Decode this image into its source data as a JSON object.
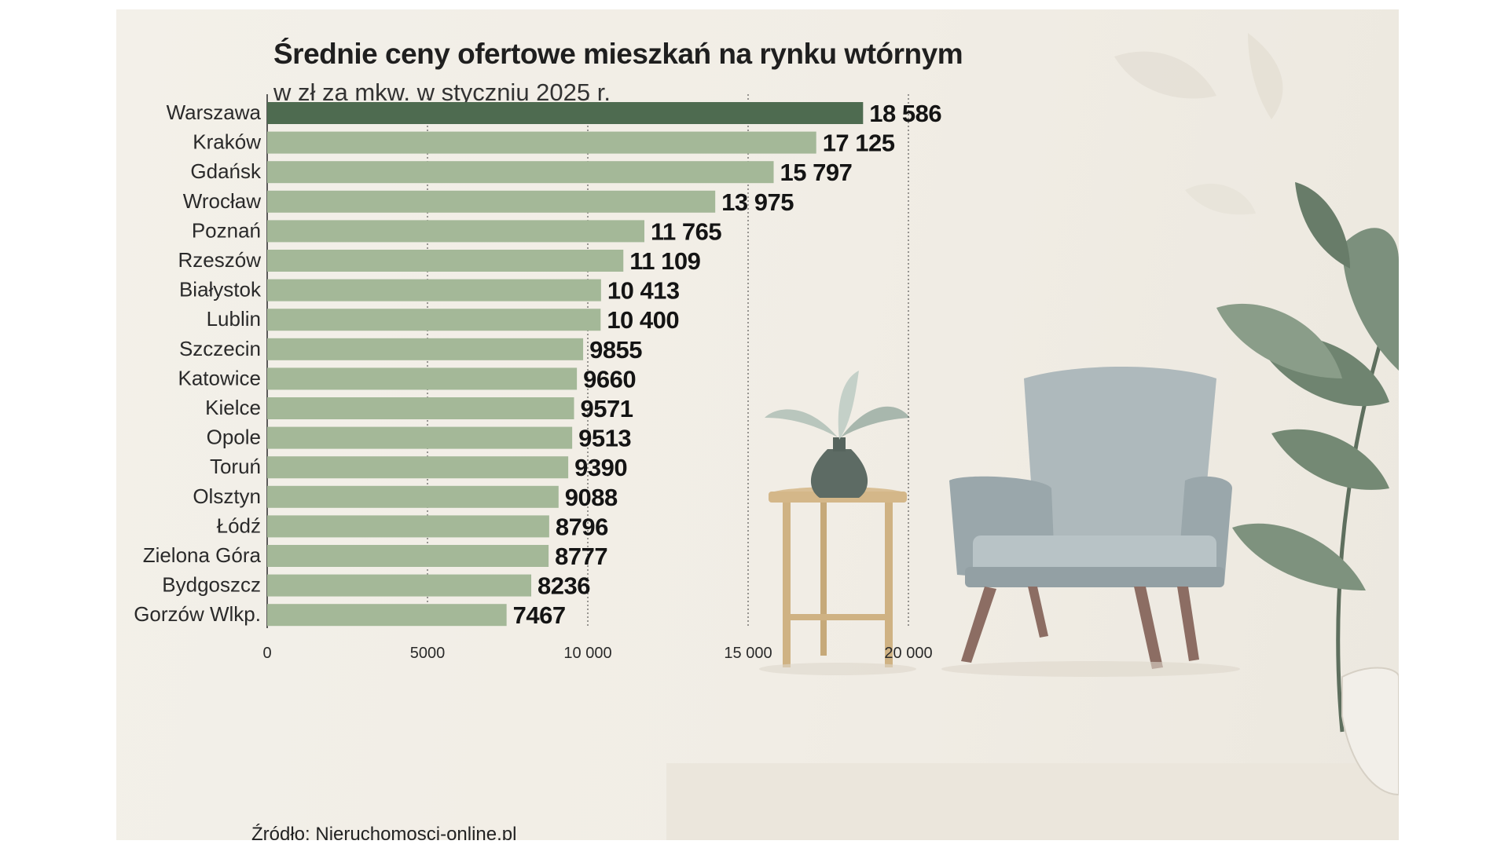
{
  "title": "Średnie ceny ofertowe mieszkań na rynku wtórnym",
  "subtitle": "w zł za mkw. w styczniu 2025 r.",
  "source": "Źródło: Nieruchomosci-online.pl",
  "colors": {
    "highlight_bar": "#4e6b50",
    "bar": "#a4b898",
    "gridline": "#2a2a2a",
    "value_text": "#141414",
    "label_text": "#2a2a2a"
  },
  "chart_data": {
    "type": "bar",
    "orientation": "horizontal",
    "title": "Średnie ceny ofertowe mieszkań na rynku wtórnym",
    "subtitle": "w zł za mkw. w styczniu 2025 r.",
    "xlabel": "",
    "ylabel": "",
    "xlim": [
      0,
      20000
    ],
    "grid": true,
    "highlight_category": "Warszawa",
    "categories": [
      "Warszawa",
      "Kraków",
      "Gdańsk",
      "Wrocław",
      "Poznań",
      "Rzeszów",
      "Białystok",
      "Lublin",
      "Szczecin",
      "Katowice",
      "Kielce",
      "Opole",
      "Toruń",
      "Olsztyn",
      "Łódź",
      "Zielona Góra",
      "Bydgoszcz",
      "Gorzów Wlkp."
    ],
    "values": [
      18586,
      17125,
      15797,
      13975,
      11765,
      11109,
      10413,
      10400,
      9855,
      9660,
      9571,
      9513,
      9390,
      9088,
      8796,
      8777,
      8236,
      7467
    ],
    "value_labels": [
      "18 586",
      "17 125",
      "15 797",
      "13 975",
      "11 765",
      "11 109",
      "10 413",
      "10 400",
      "9855",
      "9660",
      "9571",
      "9513",
      "9390",
      "9088",
      "8796",
      "8777",
      "8236",
      "7467"
    ],
    "ticks": [
      0,
      5000,
      10000,
      15000,
      20000
    ],
    "tick_labels": [
      "0",
      "5000",
      "10 000",
      "15 000",
      "20 000"
    ]
  }
}
